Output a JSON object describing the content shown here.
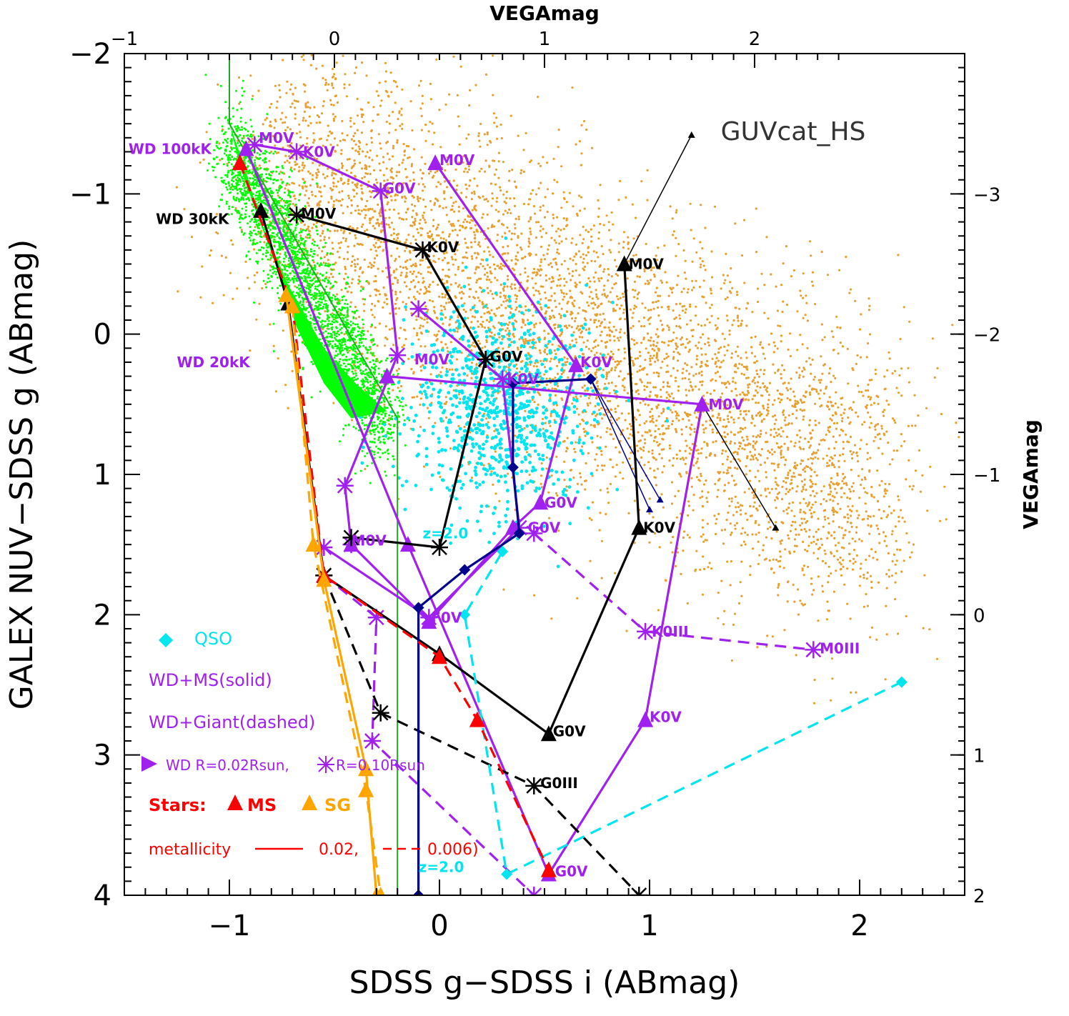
{
  "chart_data": {
    "type": "scatter",
    "title": "GUVcat_HS",
    "xlabel": "SDSS g−SDSS i (ABmag)",
    "ylabel": "GALEX NUV−SDSS g (ABmag)",
    "top_xlabel": "VEGAmag",
    "right_ylabel": "VEGAmag",
    "xlim": [
      -1.5,
      2.5
    ],
    "ylim": [
      4.0,
      -2.0
    ],
    "y_inverted": true,
    "xticks": [
      {
        "v": -1,
        "label": "−1"
      },
      {
        "v": 0,
        "label": "0"
      },
      {
        "v": 1,
        "label": "1"
      },
      {
        "v": 2,
        "label": "2"
      }
    ],
    "yticks": [
      {
        "v": -2,
        "label": "−2"
      },
      {
        "v": -1,
        "label": "−1"
      },
      {
        "v": 0,
        "label": "0"
      },
      {
        "v": 1,
        "label": "1"
      },
      {
        "v": 2,
        "label": "2"
      },
      {
        "v": 3,
        "label": "3"
      },
      {
        "v": 4,
        "label": "4"
      }
    ],
    "top_ticks": [
      {
        "v": -1,
        "label": "−1"
      },
      {
        "v": 0,
        "label": "0"
      },
      {
        "v": 1,
        "label": "1"
      },
      {
        "v": 2,
        "label": "2"
      }
    ],
    "right_ticks": [
      {
        "v": -3,
        "label": "−3"
      },
      {
        "v": -2,
        "label": "−2"
      },
      {
        "v": -1,
        "label": "−1"
      },
      {
        "v": 0,
        "label": "0"
      },
      {
        "v": 1,
        "label": "1"
      },
      {
        "v": 2,
        "label": "2"
      }
    ],
    "top_axis_offset": 0.5,
    "right_axis_offset": -2.0,
    "colors": {
      "wd_ms": "#a020f0",
      "black": "#000000",
      "navy": "#00008b",
      "qso": "#00e5ee",
      "ms_red": "#ff0000",
      "sg_orange": "#ffa500",
      "green": "#00ff00",
      "green_line": "#22aa22",
      "orange_dots": "#e8a030"
    },
    "selection_box": [
      [
        -1.0,
        -2.0
      ],
      [
        -1.0,
        -1.5
      ],
      [
        -0.2,
        0.6
      ],
      [
        -0.2,
        4.0
      ]
    ],
    "green_wd_sequence": [
      [
        -1.0,
        -1.5
      ],
      [
        -0.95,
        -1.2
      ],
      [
        -0.88,
        -0.9
      ],
      [
        -0.78,
        -0.5
      ],
      [
        -0.68,
        -0.05
      ],
      [
        -0.55,
        0.35
      ],
      [
        -0.42,
        0.6
      ],
      [
        -0.25,
        0.55
      ],
      [
        -0.4,
        0.35
      ],
      [
        -0.55,
        0.1
      ],
      [
        -0.72,
        -0.35
      ],
      [
        -0.85,
        -0.8
      ],
      [
        -0.93,
        -1.2
      ]
    ],
    "series": [
      {
        "name": "WD+MS(solid)",
        "color": "#a020f0",
        "dash": false,
        "marker": "tri",
        "points": [
          [
            -0.92,
            -1.32
          ],
          [
            -0.15,
            1.5
          ],
          [
            0.52,
            3.85
          ],
          [
            0.98,
            2.75
          ],
          [
            1.25,
            0.5
          ],
          [
            -0.25,
            0.3
          ]
        ]
      },
      {
        "name": "WD+MS(solid)",
        "color": "#a020f0",
        "dash": false,
        "marker": "star",
        "points": [
          [
            -0.88,
            -1.35
          ],
          [
            -0.68,
            -1.3
          ],
          [
            -0.28,
            -1.02
          ],
          [
            -0.2,
            0.15
          ],
          [
            -0.45,
            1.08
          ],
          [
            -0.42,
            1.5
          ]
        ]
      },
      {
        "name": "WD+MS(solid)",
        "color": "#a020f0",
        "dash": false,
        "marker": "tri",
        "points": [
          [
            -0.02,
            -1.22
          ],
          [
            0.65,
            0.22
          ],
          [
            0.48,
            1.2
          ],
          [
            0.35,
            1.38
          ],
          [
            -0.05,
            2.05
          ],
          [
            -0.42,
            1.5
          ]
        ]
      },
      {
        "name": "WD+MS(solid)",
        "color": "#a020f0",
        "dash": false,
        "marker": "star",
        "points": [
          [
            -0.1,
            -0.18
          ],
          [
            0.3,
            0.32
          ],
          [
            0.38,
            1.38
          ],
          [
            -0.05,
            2.02
          ],
          [
            -0.55,
            1.52
          ]
        ]
      },
      {
        "name": "WD+Giant(dashed)",
        "color": "#a020f0",
        "dash": true,
        "marker": "star",
        "points": [
          [
            0.45,
            1.42
          ],
          [
            0.98,
            2.12
          ],
          [
            1.78,
            2.25
          ]
        ]
      },
      {
        "name": "WD+Giant(dashed)",
        "color": "#a020f0",
        "dash": true,
        "marker": "star",
        "points": [
          [
            -0.55,
            1.72
          ],
          [
            -0.3,
            2.02
          ],
          [
            -0.32,
            2.9
          ],
          [
            0.45,
            4.0
          ]
        ]
      },
      {
        "name": "",
        "color": "#000000",
        "dash": false,
        "marker": "star",
        "points": [
          [
            -0.68,
            -0.85
          ],
          [
            -0.08,
            -0.6
          ],
          [
            0.22,
            0.18
          ],
          [
            0.0,
            1.52
          ],
          [
            -0.42,
            1.45
          ]
        ]
      },
      {
        "name": "",
        "color": "#000000",
        "dash": false,
        "marker": "tri",
        "points": [
          [
            -0.85,
            -0.88
          ],
          [
            -0.72,
            -0.22
          ],
          [
            -0.55,
            1.72
          ],
          [
            0.0,
            2.28
          ],
          [
            0.52,
            2.85
          ],
          [
            0.95,
            1.38
          ],
          [
            0.88,
            -0.5
          ]
        ]
      },
      {
        "name": "",
        "color": "#000000",
        "dash": true,
        "marker": "star",
        "points": [
          [
            -0.55,
            1.72
          ],
          [
            -0.28,
            2.7
          ],
          [
            0.45,
            3.22
          ],
          [
            0.95,
            4.0
          ]
        ]
      },
      {
        "name": "",
        "color": "#00008b",
        "dash": false,
        "marker": "diamond",
        "points": [
          [
            0.72,
            0.32
          ],
          [
            0.35,
            0.35
          ],
          [
            0.35,
            0.95
          ],
          [
            0.38,
            1.42
          ],
          [
            0.12,
            1.68
          ],
          [
            -0.1,
            1.95
          ],
          [
            -0.1,
            4.0
          ]
        ]
      },
      {
        "name": "QSO",
        "color": "#00e5ee",
        "dash": true,
        "marker": "diamond",
        "points": [
          [
            2.2,
            2.48
          ],
          [
            0.32,
            3.85
          ],
          [
            0.12,
            2.0
          ],
          [
            0.3,
            1.55
          ]
        ]
      },
      {
        "name": "Stars: MS",
        "color": "#ff0000",
        "dash": true,
        "marker": "tri",
        "points": [
          [
            -0.95,
            -1.22
          ],
          [
            -0.7,
            -0.2
          ],
          [
            -0.55,
            1.72
          ],
          [
            0.0,
            2.3
          ],
          [
            0.18,
            2.75
          ],
          [
            0.52,
            3.82
          ]
        ]
      },
      {
        "name": "Stars: SG",
        "color": "#ffa500",
        "dash": false,
        "marker": "tri",
        "points": [
          [
            -0.73,
            -0.28
          ],
          [
            -0.55,
            1.75
          ],
          [
            -0.35,
            3.1
          ],
          [
            -0.3,
            4.0
          ]
        ]
      },
      {
        "name": "Stars: SG",
        "color": "#ffa500",
        "dash": true,
        "marker": "tri",
        "points": [
          [
            -0.7,
            -0.2
          ],
          [
            -0.6,
            1.5
          ],
          [
            -0.35,
            3.25
          ],
          [
            -0.28,
            4.0
          ]
        ]
      }
    ],
    "thin_lines": [
      {
        "color": "#000000",
        "points": [
          [
            0.88,
            -0.5
          ],
          [
            1.2,
            -1.42
          ]
        ]
      },
      {
        "color": "#000000",
        "points": [
          [
            1.25,
            0.5
          ],
          [
            1.6,
            1.38
          ]
        ]
      },
      {
        "color": "#00008b",
        "points": [
          [
            0.72,
            0.32
          ],
          [
            1.0,
            1.25
          ]
        ]
      },
      {
        "color": "#00008b",
        "points": [
          [
            0.72,
            0.32
          ],
          [
            1.05,
            1.18
          ]
        ]
      }
    ],
    "annotations": [
      {
        "text": "WD 100kK",
        "x": -1.48,
        "y": -1.32,
        "color": "#a020f0",
        "size": 20
      },
      {
        "text": "WD 30kK",
        "x": -1.35,
        "y": -0.82,
        "color": "#000000",
        "size": 20
      },
      {
        "text": "WD 20kK",
        "x": -1.25,
        "y": 0.2,
        "color": "#a020f0",
        "size": 20
      },
      {
        "text": "M0V",
        "x": -0.86,
        "y": -1.4,
        "color": "#a020f0",
        "size": 20
      },
      {
        "text": "K0V",
        "x": -0.65,
        "y": -1.3,
        "color": "#a020f0",
        "size": 20
      },
      {
        "text": "G0V",
        "x": -0.27,
        "y": -1.04,
        "color": "#a020f0",
        "size": 20
      },
      {
        "text": "M0V",
        "x": 0.0,
        "y": -1.24,
        "color": "#a020f0",
        "size": 20
      },
      {
        "text": "M0V",
        "x": -0.66,
        "y": -0.86,
        "color": "#000000",
        "size": 20
      },
      {
        "text": "K0V",
        "x": -0.06,
        "y": -0.62,
        "color": "#000000",
        "size": 20
      },
      {
        "text": "M0V",
        "x": 0.9,
        "y": -0.5,
        "color": "#000000",
        "size": 20
      },
      {
        "text": "K0V",
        "x": 0.67,
        "y": 0.2,
        "color": "#a020f0",
        "size": 20
      },
      {
        "text": "M0V",
        "x": -0.12,
        "y": 0.18,
        "color": "#a020f0",
        "size": 20
      },
      {
        "text": "G0V",
        "x": 0.24,
        "y": 0.16,
        "color": "#000000",
        "size": 20
      },
      {
        "text": "K0V",
        "x": 0.32,
        "y": 0.32,
        "color": "#a020f0",
        "size": 20
      },
      {
        "text": "M0V",
        "x": 1.28,
        "y": 0.5,
        "color": "#a020f0",
        "size": 20
      },
      {
        "text": "G0V",
        "x": 0.5,
        "y": 1.2,
        "color": "#a020f0",
        "size": 20
      },
      {
        "text": "K0V",
        "x": 0.97,
        "y": 1.38,
        "color": "#000000",
        "size": 20
      },
      {
        "text": "G0V",
        "x": 0.42,
        "y": 1.38,
        "color": "#a020f0",
        "size": 20
      },
      {
        "text": "z=2.0",
        "x": -0.08,
        "y": 1.42,
        "color": "#00e5ee",
        "size": 20
      },
      {
        "text": "M0V",
        "x": -0.42,
        "y": 1.47,
        "color": "#a020f0",
        "size": 20
      },
      {
        "text": "F0V",
        "x": -0.04,
        "y": 2.02,
        "color": "#a020f0",
        "size": 20
      },
      {
        "text": "K0III",
        "x": 1.01,
        "y": 2.12,
        "color": "#a020f0",
        "size": 20
      },
      {
        "text": "M0III",
        "x": 1.81,
        "y": 2.24,
        "color": "#a020f0",
        "size": 20
      },
      {
        "text": "G0V",
        "x": 0.54,
        "y": 2.83,
        "color": "#000000",
        "size": 20
      },
      {
        "text": "K0V",
        "x": 1.0,
        "y": 2.73,
        "color": "#a020f0",
        "size": 20
      },
      {
        "text": "G0III",
        "x": 0.48,
        "y": 3.2,
        "color": "#000000",
        "size": 20
      },
      {
        "text": "G0V",
        "x": 0.55,
        "y": 3.83,
        "color": "#a020f0",
        "size": 20
      },
      {
        "text": "z=2.0",
        "x": -0.1,
        "y": 3.8,
        "color": "#00e5ee",
        "size": 20
      }
    ],
    "legend": {
      "qso": "QSO",
      "wd_ms": "WD+MS(solid)",
      "wd_giant": "WD+Giant(dashed)",
      "wd_r_prefix": "WD R=0.02Rsun,",
      "wd_r_suffix": "R=0.10Rsun",
      "stars_label": "Stars:",
      "ms": "MS",
      "sg": "SG",
      "metallicity": "metallicity",
      "met_solid": "0.02,",
      "met_dashed": "0.006)"
    },
    "grid": false,
    "legend_placement": "bottom-left"
  }
}
